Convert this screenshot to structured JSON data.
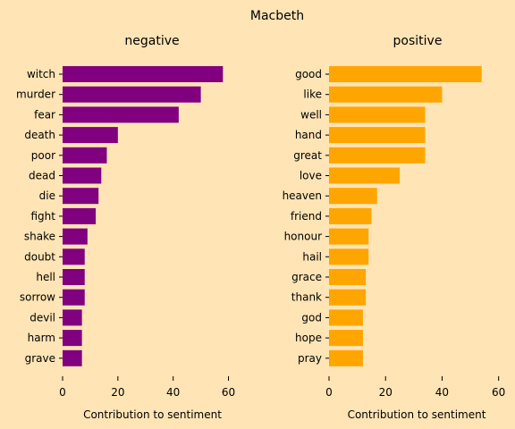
{
  "chart_data": {
    "type": "bar",
    "orientation": "horizontal",
    "title": "Macbeth",
    "background": "#FFE4B5",
    "grid": false,
    "panels": [
      {
        "title": "negative",
        "color": "#800080",
        "xlabel": "Contribution to sentiment",
        "xlim": [
          0,
          65
        ],
        "xticks": [
          0,
          20,
          40,
          60
        ],
        "categories": [
          "witch",
          "murder",
          "fear",
          "death",
          "poor",
          "dead",
          "die",
          "fight",
          "shake",
          "doubt",
          "hell",
          "sorrow",
          "devil",
          "harm",
          "grave"
        ],
        "values": [
          58,
          50,
          42,
          20,
          16,
          14,
          13,
          12,
          9,
          8,
          8,
          8,
          7,
          7,
          7
        ]
      },
      {
        "title": "positive",
        "color": "#FFA500",
        "xlabel": "Contribution to sentiment",
        "xlim": [
          0,
          62
        ],
        "xticks": [
          0,
          20,
          40,
          60
        ],
        "categories": [
          "good",
          "like",
          "well",
          "hand",
          "great",
          "love",
          "heaven",
          "friend",
          "honour",
          "hail",
          "grace",
          "thank",
          "god",
          "hope",
          "pray"
        ],
        "values": [
          54,
          40,
          34,
          34,
          34,
          25,
          17,
          15,
          14,
          14,
          13,
          13,
          12,
          12,
          12
        ]
      }
    ]
  }
}
